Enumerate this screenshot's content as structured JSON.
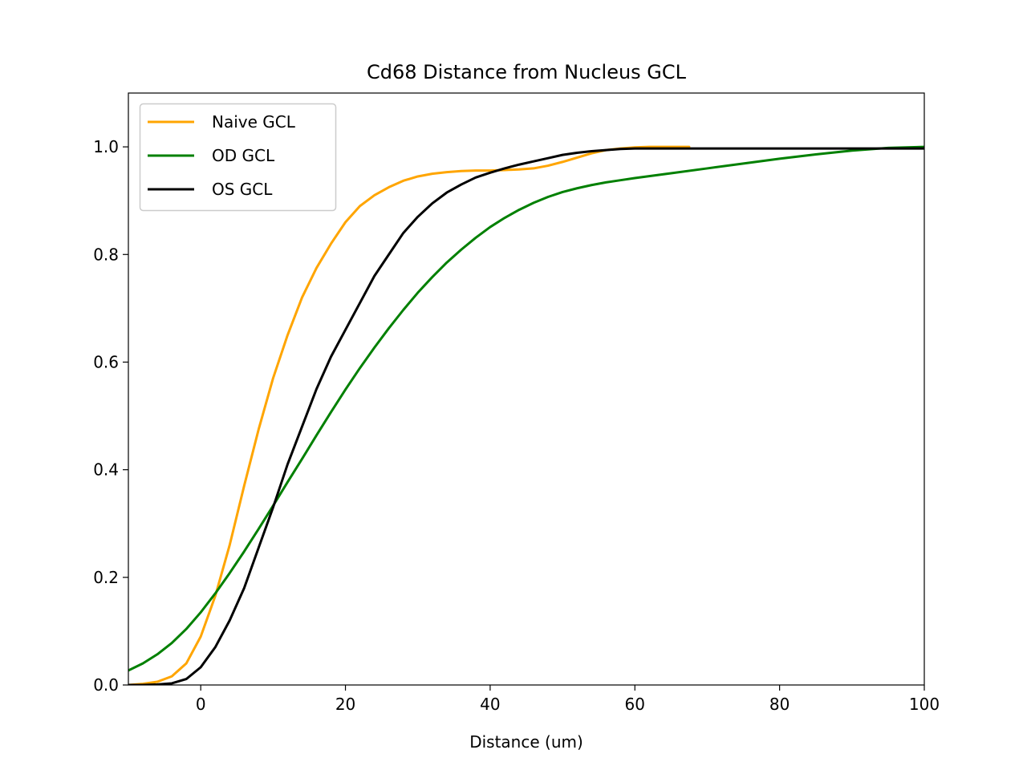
{
  "chart_data": {
    "type": "line",
    "title": "Cd68 Distance from Nucleus GCL",
    "xlabel": "Distance (um)",
    "ylabel": "",
    "xlim": [
      -10,
      100
    ],
    "ylim": [
      0,
      1.1
    ],
    "x_ticks": [
      0,
      20,
      40,
      60,
      80,
      100
    ],
    "x_tick_labels": [
      "0",
      "20",
      "40",
      "60",
      "80",
      "100"
    ],
    "y_ticks": [
      0.0,
      0.2,
      0.4,
      0.6,
      0.8,
      1.0
    ],
    "y_tick_labels": [
      "0.0",
      "0.2",
      "0.4",
      "0.6",
      "0.8",
      "1.0"
    ],
    "grid": false,
    "legend_position": "top-left",
    "series": [
      {
        "name": "Naive GCL",
        "color": "#ffa500",
        "x": [
          -10,
          -8,
          -6,
          -4,
          -2,
          0,
          2,
          4,
          6,
          8,
          10,
          12,
          14,
          16,
          18,
          20,
          22,
          24,
          26,
          28,
          30,
          32,
          34,
          36,
          38,
          40,
          42,
          44,
          46,
          48,
          50,
          52,
          54,
          56,
          58,
          60,
          62,
          64,
          66,
          67.5
        ],
        "y": [
          0.0,
          0.002,
          0.006,
          0.016,
          0.04,
          0.09,
          0.165,
          0.26,
          0.37,
          0.475,
          0.57,
          0.65,
          0.72,
          0.775,
          0.82,
          0.86,
          0.89,
          0.91,
          0.925,
          0.937,
          0.945,
          0.95,
          0.953,
          0.955,
          0.956,
          0.956,
          0.957,
          0.958,
          0.96,
          0.965,
          0.972,
          0.98,
          0.988,
          0.994,
          0.997,
          0.999,
          1.0,
          1.0,
          1.0,
          1.0
        ]
      },
      {
        "name": "OD GCL",
        "color": "#008000",
        "x": [
          -10,
          -8,
          -6,
          -4,
          -2,
          0,
          2,
          4,
          6,
          8,
          10,
          12,
          14,
          16,
          18,
          20,
          22,
          24,
          26,
          28,
          30,
          32,
          34,
          36,
          38,
          40,
          42,
          44,
          46,
          48,
          50,
          52,
          54,
          56,
          58,
          60,
          65,
          70,
          75,
          80,
          85,
          90,
          95,
          100
        ],
        "y": [
          0.027,
          0.04,
          0.057,
          0.078,
          0.104,
          0.135,
          0.17,
          0.208,
          0.248,
          0.29,
          0.333,
          0.377,
          0.42,
          0.464,
          0.507,
          0.549,
          0.589,
          0.627,
          0.663,
          0.697,
          0.729,
          0.758,
          0.785,
          0.809,
          0.831,
          0.851,
          0.868,
          0.883,
          0.896,
          0.907,
          0.916,
          0.923,
          0.929,
          0.934,
          0.938,
          0.942,
          0.951,
          0.96,
          0.969,
          0.978,
          0.986,
          0.993,
          0.998,
          1.0
        ]
      },
      {
        "name": "OS GCL",
        "color": "#000000",
        "x": [
          -10,
          -8,
          -6,
          -4,
          -2,
          0,
          2,
          4,
          6,
          8,
          10,
          12,
          14,
          16,
          18,
          20,
          22,
          24,
          26,
          28,
          30,
          32,
          34,
          36,
          38,
          40,
          42,
          44,
          46,
          48,
          50,
          52,
          54,
          56,
          58,
          60,
          65,
          70,
          80,
          90,
          100
        ],
        "y": [
          0.0,
          0.0,
          0.001,
          0.003,
          0.011,
          0.033,
          0.07,
          0.12,
          0.18,
          0.255,
          0.33,
          0.41,
          0.48,
          0.55,
          0.61,
          0.66,
          0.71,
          0.76,
          0.8,
          0.84,
          0.87,
          0.895,
          0.915,
          0.93,
          0.943,
          0.952,
          0.96,
          0.967,
          0.973,
          0.979,
          0.985,
          0.989,
          0.992,
          0.994,
          0.996,
          0.997,
          0.997,
          0.997,
          0.997,
          0.997,
          0.997
        ]
      }
    ]
  }
}
